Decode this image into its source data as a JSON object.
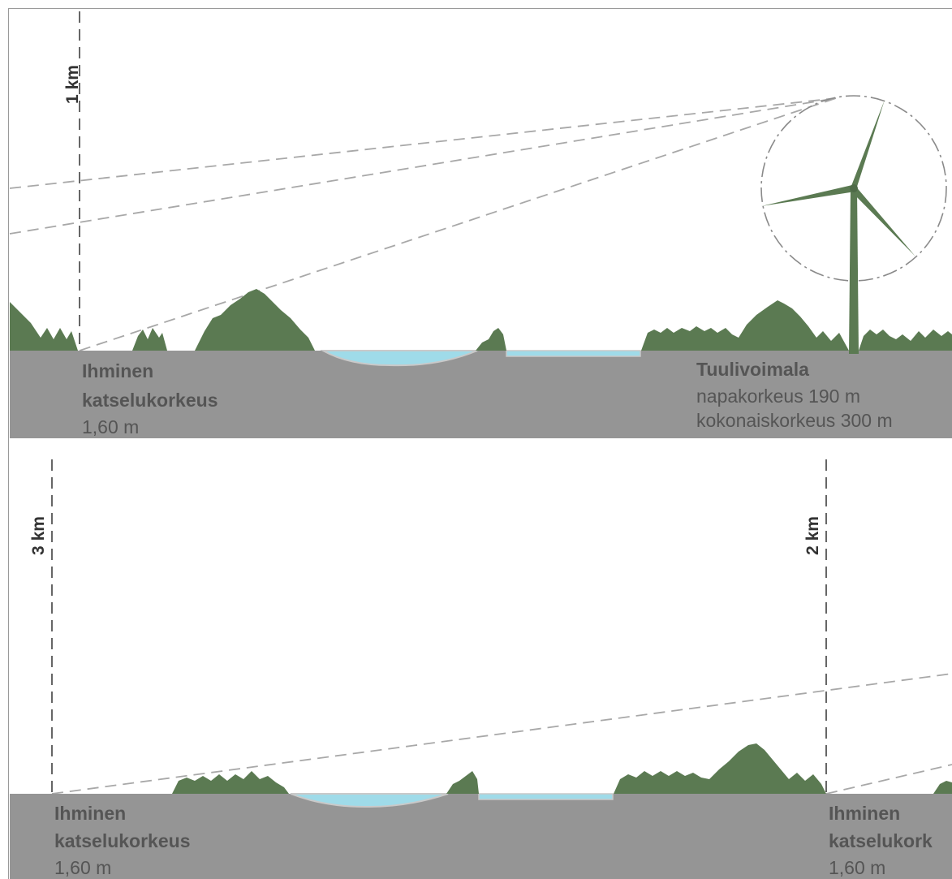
{
  "top_panel": {
    "distance_label": "1 km",
    "observer": {
      "title": "Ihminen",
      "subtitle": "katselukorkeus",
      "height": "1,60 m"
    },
    "turbine": {
      "title": "Tuulivoimala",
      "hub_height": "napakorkeus 190 m",
      "total_height": "kokonaiskorkeus 300 m"
    }
  },
  "bottom_panel": {
    "left_distance_label": "3 km",
    "right_distance_label": "2 km",
    "left_observer": {
      "title": "Ihminen",
      "subtitle": "katselukorkeus",
      "height": "1,60 m"
    },
    "right_observer": {
      "title": "Ihminen",
      "subtitle": "katselukork",
      "height": "1,60 m"
    }
  },
  "colors": {
    "ground": "#959595",
    "forest": "#5b7a52",
    "water": "#9fdbe9",
    "sightline": "#a8a8a8",
    "turbine": "#5b7a52"
  }
}
